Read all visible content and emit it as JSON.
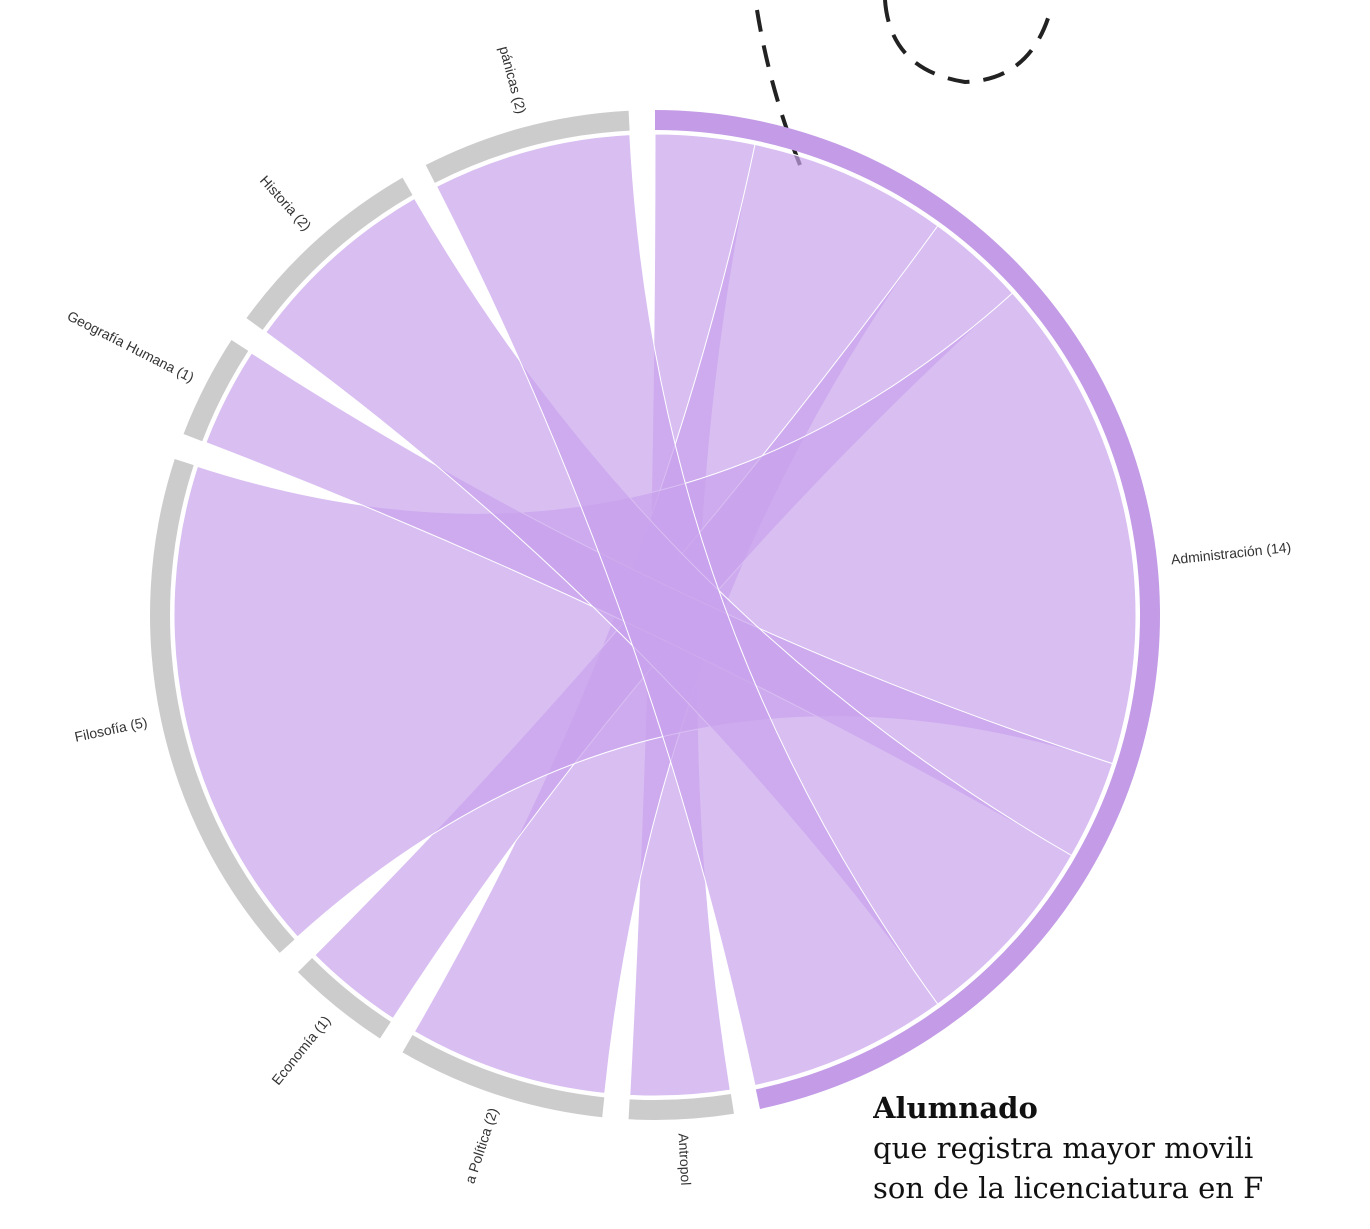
{
  "chart_data": {
    "type": "chord",
    "groups": [
      {
        "label": "Administración (14)",
        "value": 14
      },
      {
        "label": "Antropol",
        "value": 1
      },
      {
        "label": "a Política (2)",
        "value": 2
      },
      {
        "label": "Economía (1)",
        "value": 1
      },
      {
        "label": "Filosofía (5)",
        "value": 5
      },
      {
        "label": "Geografía Humana (1)",
        "value": 1
      },
      {
        "label": "Historia (2)",
        "value": 2
      },
      {
        "label": "pánicas (2)",
        "value": 2
      }
    ],
    "hub_color": "#c39be6",
    "group_color": "#cccccc",
    "chord_color": "#c9a3ec"
  },
  "text": {
    "heading": "Alumnado",
    "lines": [
      "que registra mayor movili",
      "son de la licenciatura en F"
    ]
  }
}
